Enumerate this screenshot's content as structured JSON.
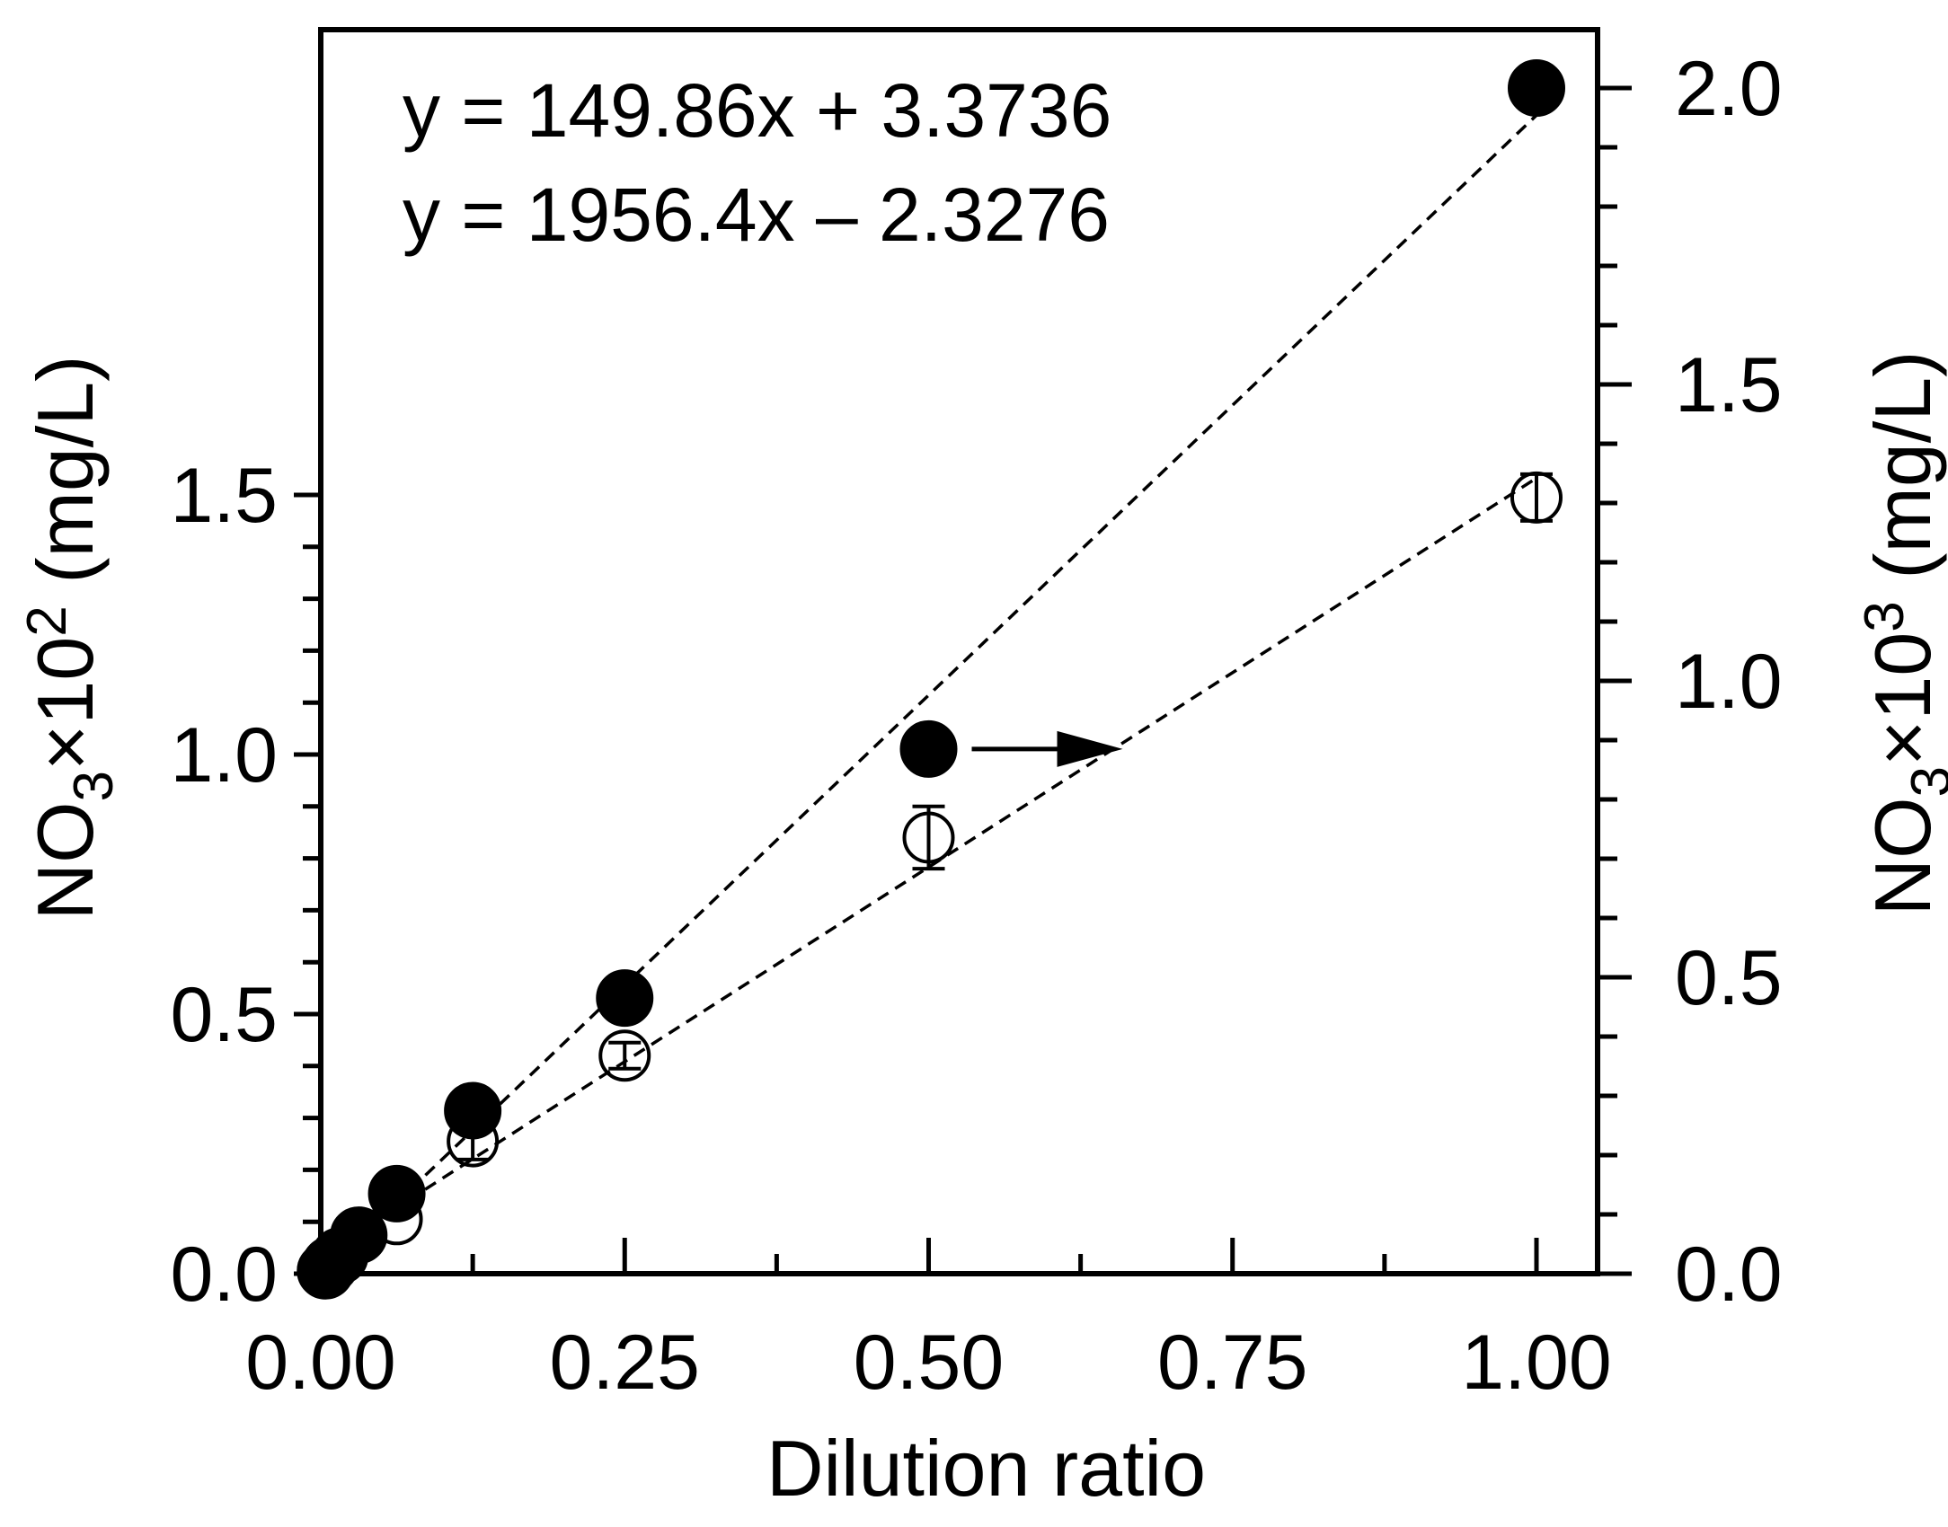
{
  "chart_data": {
    "type": "scatter",
    "xlabel": "Dilution ratio",
    "ylabel_left": {
      "text": "NO",
      "sub": "3",
      "mid": "×10",
      "sup": "2",
      "unit": " (mg/L)"
    },
    "ylabel_right": {
      "text": "NO",
      "sub": "3",
      "mid": "×10",
      "sup": "3",
      "unit": " (mg/L)"
    },
    "xlim": [
      0,
      1.05
    ],
    "ylim_left": [
      0,
      1.6
    ],
    "ylim_right": [
      0,
      2.1
    ],
    "x_ticks": [
      "0.00",
      "0.25",
      "0.50",
      "0.75",
      "1.00"
    ],
    "y_left_ticks": [
      "0.0",
      "0.5",
      "1.0",
      "1.5"
    ],
    "y_right_ticks": [
      "0.0",
      "0.5",
      "1.0",
      "1.5",
      "2.0"
    ],
    "equations": [
      "y = 149.86x + 3.3736",
      "y = 1956.4x – 2.3276"
    ],
    "grid": false,
    "series": [
      {
        "marker": "open-circle",
        "axis": "left",
        "fit": {
          "slope": 1.4986,
          "intercept": 0.033736
        },
        "points": [
          {
            "x": 0.0039,
            "y": 0.005,
            "err": 0.0
          },
          {
            "x": 0.0078,
            "y": 0.01,
            "err": 0.0
          },
          {
            "x": 0.0156,
            "y": 0.03,
            "err": 0.0
          },
          {
            "x": 0.03125,
            "y": 0.07,
            "err": 0.0
          },
          {
            "x": 0.0625,
            "y": 0.105,
            "err": 0.0
          },
          {
            "x": 0.125,
            "y": 0.255,
            "err": 0.035
          },
          {
            "x": 0.25,
            "y": 0.42,
            "err": 0.025
          },
          {
            "x": 0.5,
            "y": 0.84,
            "err": 0.06
          },
          {
            "x": 1.0,
            "y": 1.495,
            "err": 0.045
          }
        ]
      },
      {
        "marker": "filled-circle",
        "axis": "right",
        "fit": {
          "slope": 1.9564,
          "intercept": -0.0023276
        },
        "points": [
          {
            "x": 0.0039,
            "y": 0.005
          },
          {
            "x": 0.0078,
            "y": 0.015
          },
          {
            "x": 0.0156,
            "y": 0.03
          },
          {
            "x": 0.03125,
            "y": 0.065
          },
          {
            "x": 0.0625,
            "y": 0.135
          },
          {
            "x": 0.125,
            "y": 0.275
          },
          {
            "x": 0.25,
            "y": 0.465
          },
          {
            "x": 0.5,
            "y": 0.885
          },
          {
            "x": 1.0,
            "y": 2.0
          }
        ]
      }
    ],
    "annotation": {
      "type": "arrow",
      "direction": "right",
      "points_to": "right-axis",
      "from_series": 1,
      "from_point_x": 0.5
    }
  }
}
